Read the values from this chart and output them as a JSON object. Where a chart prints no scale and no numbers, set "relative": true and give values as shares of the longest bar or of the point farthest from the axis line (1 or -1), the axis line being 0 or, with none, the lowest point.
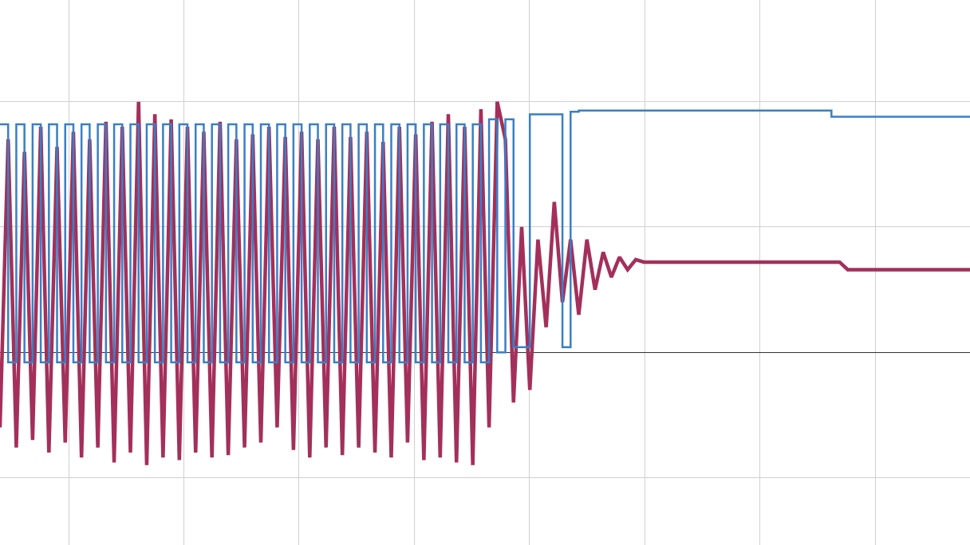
{
  "chart_data": {
    "type": "line",
    "relative": true,
    "grid": true,
    "categories": [
      null,
      null,
      null,
      null,
      null,
      null,
      null,
      null,
      null,
      null,
      null,
      null,
      null,
      null,
      null,
      null,
      null,
      null,
      null,
      null,
      null,
      null,
      null,
      null,
      null,
      null,
      null,
      null,
      null,
      null,
      null,
      null,
      null,
      null,
      null,
      null,
      null,
      null,
      null,
      null,
      null,
      null,
      null,
      null,
      null,
      null,
      null,
      null,
      null,
      null,
      null,
      null,
      null,
      null,
      null,
      null,
      null,
      null,
      null,
      null,
      null,
      null,
      null,
      null,
      null,
      null,
      null,
      null,
      null,
      null,
      null,
      null,
      null,
      null,
      null,
      null,
      null,
      null,
      null,
      null,
      null,
      null,
      null,
      null,
      null,
      null,
      null,
      null,
      null,
      null,
      null,
      null,
      null,
      null,
      null,
      null,
      null,
      null,
      null,
      null,
      null,
      null,
      null,
      null,
      null,
      null,
      null,
      null,
      null,
      null,
      null,
      null,
      null,
      null,
      null,
      null,
      null,
      null,
      null,
      null
    ],
    "series": [
      {
        "color": "#a3305a",
        "values": [
          -0.3,
          0.85,
          -0.38,
          0.8,
          -0.35,
          0.9,
          -0.4,
          0.82,
          -0.36,
          0.88,
          -0.42,
          0.85,
          -0.38,
          0.92,
          -0.44,
          0.9,
          -0.4,
          1.0,
          -0.45,
          0.95,
          -0.42,
          0.93,
          -0.43,
          0.9,
          -0.4,
          0.88,
          -0.42,
          0.92,
          -0.41,
          0.85,
          -0.38,
          0.87,
          -0.36,
          0.9,
          -0.3,
          0.86,
          -0.39,
          0.88,
          -0.42,
          0.85,
          -0.38,
          0.9,
          -0.41,
          0.86,
          -0.38,
          0.88,
          -0.4,
          0.84,
          -0.42,
          0.9,
          -0.36,
          0.87,
          -0.43,
          0.92,
          -0.42,
          0.95,
          -0.44,
          0.9,
          -0.45,
          0.97,
          -0.3,
          1.0,
          0.85,
          -0.2,
          0.5,
          -0.15,
          0.45,
          0.1,
          0.6,
          0.2,
          0.45,
          0.15,
          0.45,
          0.25,
          0.4,
          0.3,
          0.38,
          0.33,
          0.37,
          0.36,
          0.36,
          0.36,
          0.36,
          0.36,
          0.36,
          0.36,
          0.36,
          0.36,
          0.36,
          0.36,
          0.36,
          0.36,
          0.36,
          0.36,
          0.36,
          0.36,
          0.36,
          0.36,
          0.36,
          0.36,
          0.36,
          0.36,
          0.36,
          0.36,
          0.33,
          0.33,
          0.33,
          0.33,
          0.33,
          0.33,
          0.33,
          0.33,
          0.33,
          0.33,
          0.33,
          0.33,
          0.33,
          0.33,
          0.33,
          0.33
        ]
      },
      {
        "type": "step",
        "color": "#3a7fc6",
        "values": [
          0.91,
          -0.04,
          0.91,
          -0.04,
          0.91,
          -0.04,
          0.91,
          -0.04,
          0.91,
          -0.04,
          0.91,
          -0.04,
          0.91,
          -0.04,
          0.91,
          -0.04,
          0.91,
          -0.04,
          0.91,
          -0.04,
          0.91,
          -0.04,
          0.91,
          -0.04,
          0.91,
          -0.04,
          0.91,
          -0.04,
          0.91,
          -0.04,
          0.91,
          -0.04,
          0.91,
          -0.04,
          0.91,
          -0.04,
          0.91,
          -0.04,
          0.91,
          -0.04,
          0.91,
          -0.04,
          0.91,
          -0.04,
          0.91,
          -0.04,
          0.91,
          -0.04,
          0.91,
          -0.04,
          0.91,
          -0.04,
          0.91,
          -0.04,
          0.91,
          -0.04,
          0.91,
          -0.04,
          0.91,
          -0.04,
          0.93,
          0.0,
          0.93,
          0.02,
          0.02,
          0.95,
          0.95,
          0.95,
          0.95,
          0.02,
          0.96,
          0.965,
          0.965,
          0.965,
          0.965,
          0.965,
          0.965,
          0.965,
          0.965,
          0.965,
          0.965,
          0.965,
          0.965,
          0.965,
          0.965,
          0.965,
          0.965,
          0.965,
          0.965,
          0.965,
          0.965,
          0.965,
          0.965,
          0.965,
          0.965,
          0.965,
          0.965,
          0.965,
          0.965,
          0.965,
          0.965,
          0.965,
          0.94,
          0.94,
          0.94,
          0.94,
          0.94,
          0.94,
          0.94,
          0.94,
          0.94,
          0.94,
          0.94,
          0.94,
          0.94,
          0.94,
          0.94,
          0.94,
          0.94,
          0.94
        ]
      }
    ]
  }
}
